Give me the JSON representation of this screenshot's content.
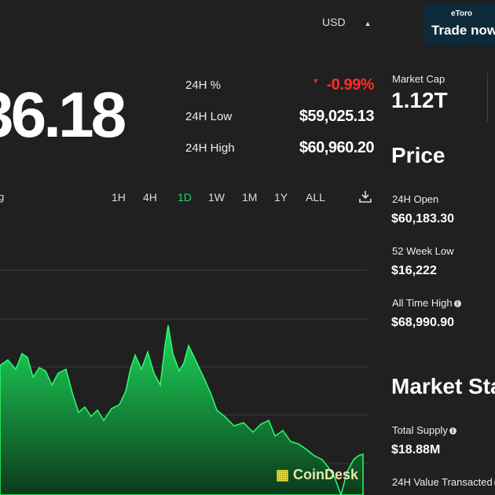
{
  "header": {
    "currency": "USD",
    "ad_brand": "eToro",
    "ad_button": "Trade now"
  },
  "price": "36.18",
  "stats": [
    {
      "label": "24H %",
      "value": "-0.99%"
    },
    {
      "label": "24H Low",
      "value": "$59,025.13"
    },
    {
      "label": "24H High",
      "value": "$60,960.20"
    }
  ],
  "chart_label": "g",
  "timeframes": [
    "1H",
    "4H",
    "1D",
    "1W",
    "1M",
    "1Y",
    "ALL"
  ],
  "watermark": "CoinDesk",
  "sidebar": {
    "market_cap_label": "Market Cap",
    "market_cap": "1.12T",
    "price_heading": "Price",
    "price_items": [
      {
        "label": "24H Open",
        "value": "$60,183.30"
      },
      {
        "label": "52 Week Low",
        "value": "$16,222"
      },
      {
        "label": "All Time High",
        "value": "$68,990.90"
      }
    ],
    "market_heading": "Market Sta",
    "market_items": [
      {
        "label": "Total Supply",
        "value": "$18.88M"
      },
      {
        "label": "24H Value Transacted"
      }
    ]
  }
}
